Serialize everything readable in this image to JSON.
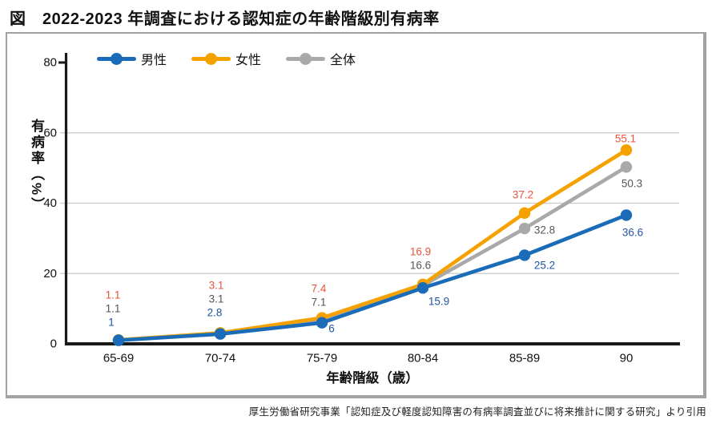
{
  "figure_label": "図",
  "title": "2022-2023 年調査における認知症の年齢階級別有病率",
  "source": "厚生労働省研究事業「認知症及び軽度認知障害の有病率調査並びに将来推計に関する研究」より引用",
  "chart_data": {
    "type": "line",
    "title": "2022-2023 年調査における認知症の年齢階級別有病率",
    "categories": [
      "65-69",
      "70-74",
      "75-79",
      "80-84",
      "85-89",
      "90"
    ],
    "series": [
      {
        "name": "男性",
        "color": "#1b6cb8",
        "label_color": "#2255a4",
        "values": [
          1,
          2.8,
          6,
          15.9,
          25.2,
          36.6
        ]
      },
      {
        "name": "女性",
        "color": "#f5a200",
        "label_color": "#e9543e",
        "values": [
          1.1,
          3.1,
          7.4,
          16.9,
          37.2,
          55.1
        ]
      },
      {
        "name": "全体",
        "color": "#a9a9a9",
        "label_color": "#565656",
        "values": [
          1.1,
          3.1,
          7.1,
          16.6,
          32.8,
          50.3
        ]
      }
    ],
    "xlabel": "年齢階級（歳）",
    "ylabel": "有病率（%）",
    "ylim": [
      0,
      80
    ],
    "yticks": [
      0,
      20,
      40,
      60,
      80
    ],
    "grid": true,
    "legend_position": "top-left"
  }
}
